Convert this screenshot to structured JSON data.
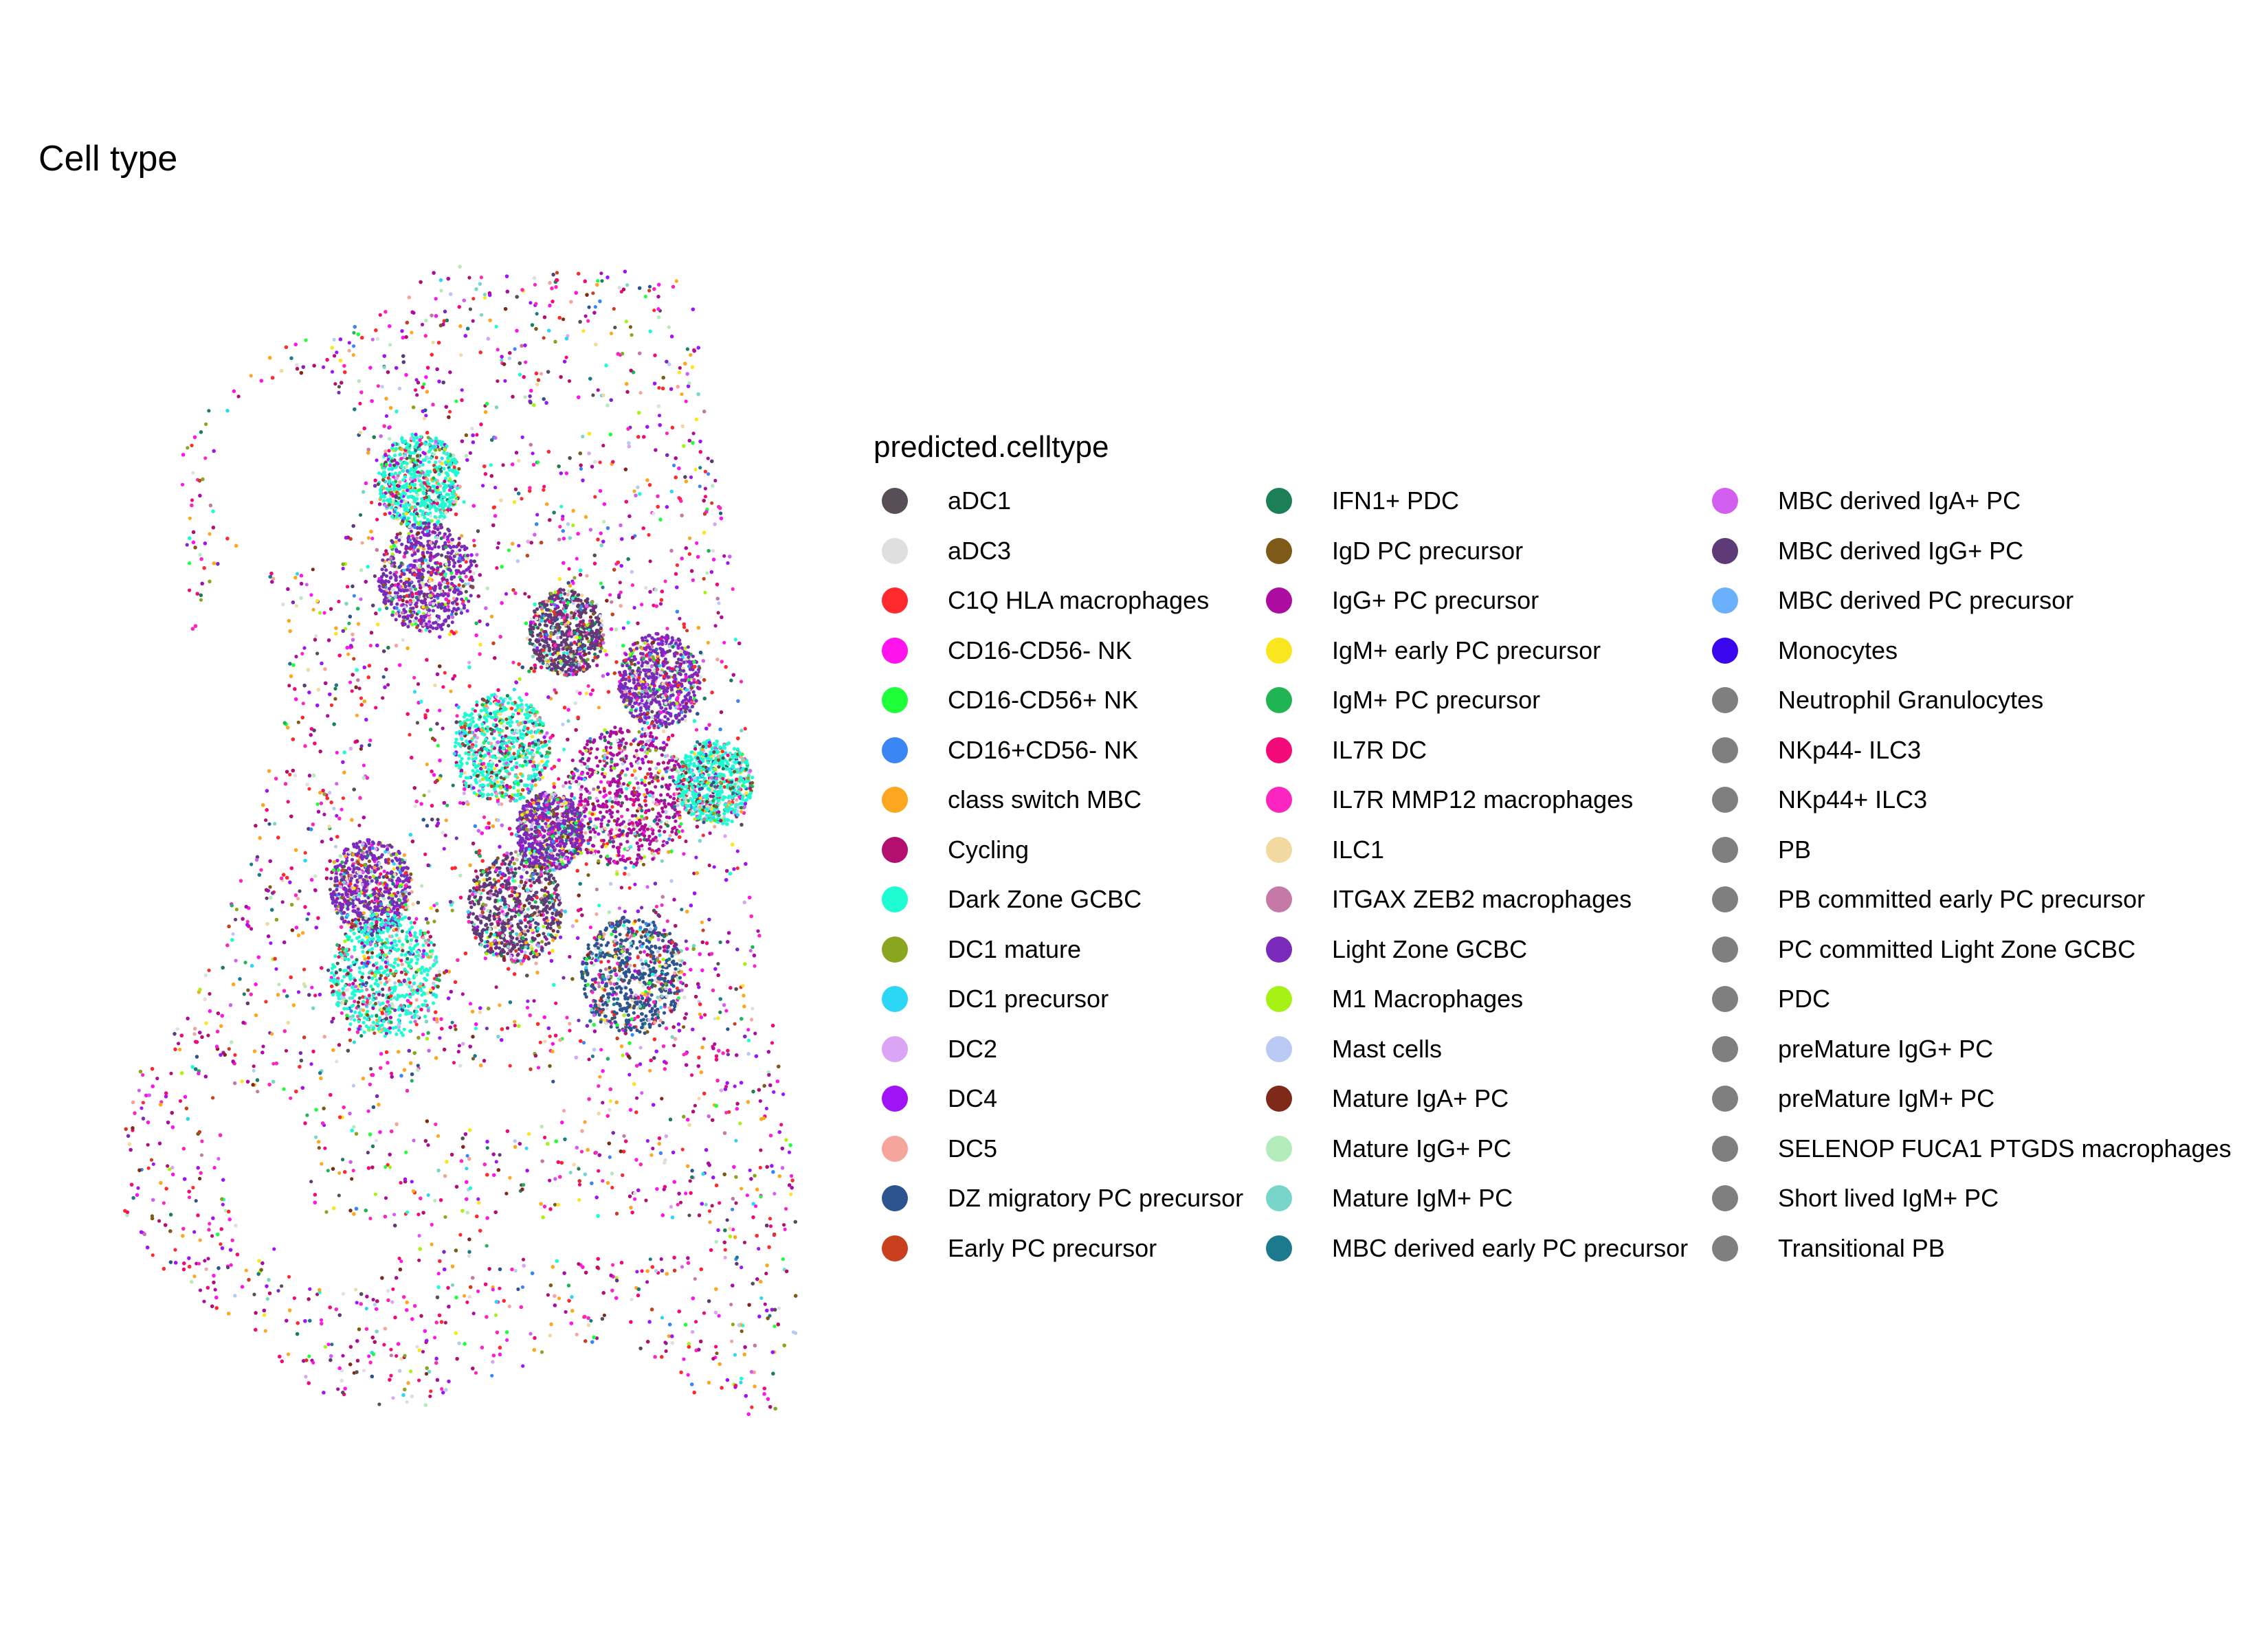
{
  "chart_data": {
    "type": "scatter",
    "title": "Cell type",
    "legend_title": "predicted.celltype",
    "legend_position": "right",
    "grid": false,
    "axes_visible": false,
    "series": [
      {
        "name": "aDC1",
        "color": "#574f55"
      },
      {
        "name": "aDC3",
        "color": "#e0dfe0"
      },
      {
        "name": "C1Q HLA macrophages",
        "color": "#ff2a2e"
      },
      {
        "name": "CD16-CD56- NK",
        "color": "#ff14ee"
      },
      {
        "name": "CD16-CD56+ NK",
        "color": "#1eff3a"
      },
      {
        "name": "CD16+CD56- NK",
        "color": "#3a86f5"
      },
      {
        "name": "class switch MBC",
        "color": "#fca71f"
      },
      {
        "name": "Cycling",
        "color": "#b30f6e"
      },
      {
        "name": "Dark Zone GCBC",
        "color": "#1dfcd3"
      },
      {
        "name": "DC1 mature",
        "color": "#8aa51f"
      },
      {
        "name": "DC1 precursor",
        "color": "#2bd7f5"
      },
      {
        "name": "DC2",
        "color": "#dba5f5"
      },
      {
        "name": "DC4",
        "color": "#a013f7"
      },
      {
        "name": "DC5",
        "color": "#f6a59c"
      },
      {
        "name": "DZ migratory PC precursor",
        "color": "#2d548e"
      },
      {
        "name": "Early PC precursor",
        "color": "#c8401f"
      },
      {
        "name": "IFN1+ PDC",
        "color": "#1d7f57"
      },
      {
        "name": "IgD PC precursor",
        "color": "#7d5a17"
      },
      {
        "name": "IgG+ PC precursor",
        "color": "#ad0ca0"
      },
      {
        "name": "IgM+ early PC precursor",
        "color": "#fae61f"
      },
      {
        "name": "IgM+ PC precursor",
        "color": "#20b455"
      },
      {
        "name": "IL7R DC",
        "color": "#f30a78"
      },
      {
        "name": "IL7R MMP12 macrophages",
        "color": "#fc25c0"
      },
      {
        "name": "ILC1",
        "color": "#f2d9a0"
      },
      {
        "name": "ITGAX ZEB2 macrophages",
        "color": "#c579a6"
      },
      {
        "name": "Light Zone GCBC",
        "color": "#7a2bbb"
      },
      {
        "name": "M1 Macrophages",
        "color": "#a6f215"
      },
      {
        "name": "Mast cells",
        "color": "#bacaf5"
      },
      {
        "name": "Mature IgA+ PC",
        "color": "#7f2a18"
      },
      {
        "name": "Mature IgG+ PC",
        "color": "#b4ebbb"
      },
      {
        "name": "Mature IgM+ PC",
        "color": "#78d6c8"
      },
      {
        "name": "MBC derived early PC precursor",
        "color": "#1d7a8e"
      },
      {
        "name": "MBC derived IgA+ PC",
        "color": "#d35ff0"
      },
      {
        "name": "MBC derived IgG+ PC",
        "color": "#5e3a76"
      },
      {
        "name": "MBC derived PC precursor",
        "color": "#6ab0fa"
      },
      {
        "name": "Monocytes",
        "color": "#3a06ee"
      },
      {
        "name": "Neutrophil Granulocytes",
        "color": "#7f7f7f"
      },
      {
        "name": "NKp44- ILC3",
        "color": "#7f7f7f"
      },
      {
        "name": "NKp44+ ILC3",
        "color": "#7f7f7f"
      },
      {
        "name": "PB",
        "color": "#7f7f7f"
      },
      {
        "name": "PB committed early PC precursor",
        "color": "#7f7f7f"
      },
      {
        "name": "PC committed Light Zone GCBC",
        "color": "#7f7f7f"
      },
      {
        "name": "PDC",
        "color": "#7f7f7f"
      },
      {
        "name": "preMature IgG+ PC",
        "color": "#7f7f7f"
      },
      {
        "name": "preMature IgM+ PC",
        "color": "#7f7f7f"
      },
      {
        "name": "SELENOP FUCA1 PTGDS macrophages",
        "color": "#7f7f7f"
      },
      {
        "name": "Short lived IgM+ PC",
        "color": "#7f7f7f"
      },
      {
        "name": "Transitional PB",
        "color": "#7f7f7f"
      }
    ]
  }
}
